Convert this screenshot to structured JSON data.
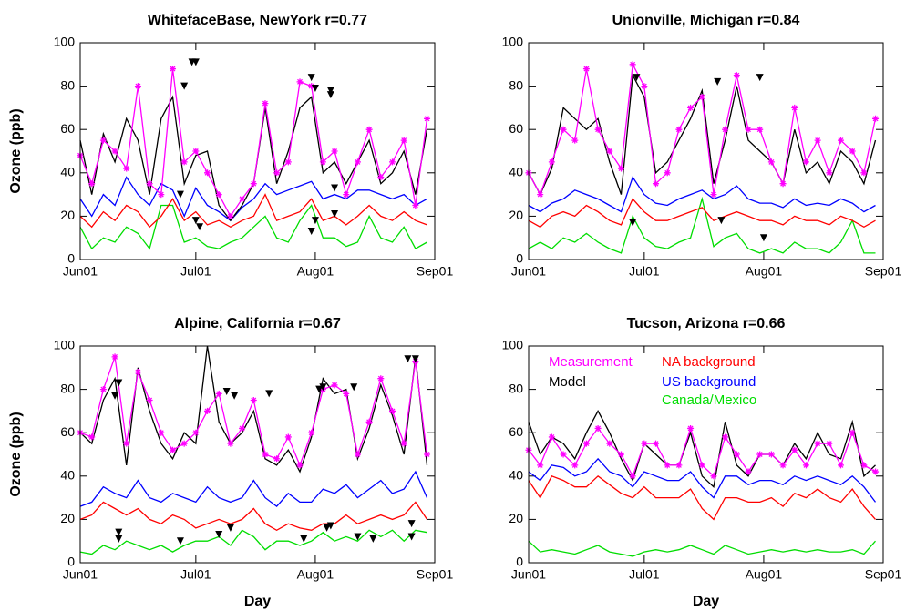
{
  "chart_data": [
    {
      "type": "line",
      "title": "WhitefaceBase, NewYork r=0.77",
      "ylabel": "Ozone (ppb)",
      "xlim": [
        0,
        92
      ],
      "xticks": [
        {
          "value": 0,
          "label": "Jun01"
        },
        {
          "value": 30,
          "label": "Jul01"
        },
        {
          "value": 61,
          "label": "Aug01"
        },
        {
          "value": 92,
          "label": "Sep01"
        }
      ],
      "ylim": [
        0,
        100
      ],
      "yticks": [
        0,
        20,
        40,
        60,
        80,
        100
      ],
      "x": [
        0,
        3,
        6,
        9,
        12,
        15,
        18,
        21,
        24,
        27,
        30,
        33,
        36,
        39,
        42,
        45,
        48,
        51,
        54,
        57,
        60,
        63,
        66,
        69,
        72,
        75,
        78,
        81,
        84,
        87,
        90
      ],
      "series": [
        {
          "color": "#ff00ff",
          "marker": "asterisk",
          "values": [
            48,
            35,
            55,
            50,
            42,
            80,
            35,
            30,
            88,
            45,
            50,
            40,
            30,
            20,
            28,
            35,
            72,
            40,
            45,
            82,
            80,
            45,
            50,
            30,
            45,
            60,
            38,
            45,
            55,
            25,
            65
          ]
        },
        {
          "color": "#000000",
          "values": [
            55,
            30,
            58,
            45,
            65,
            55,
            30,
            65,
            75,
            35,
            48,
            50,
            25,
            18,
            25,
            35,
            70,
            35,
            50,
            70,
            75,
            40,
            45,
            35,
            45,
            55,
            35,
            40,
            50,
            30,
            60
          ]
        },
        {
          "color": "#ff0000",
          "values": [
            20,
            15,
            22,
            18,
            25,
            22,
            15,
            20,
            28,
            18,
            22,
            16,
            18,
            15,
            18,
            20,
            30,
            18,
            20,
            22,
            28,
            18,
            20,
            16,
            20,
            25,
            20,
            18,
            22,
            18,
            16
          ]
        },
        {
          "color": "#0000ff",
          "values": [
            28,
            20,
            30,
            25,
            38,
            30,
            25,
            35,
            32,
            20,
            33,
            25,
            22,
            18,
            24,
            28,
            35,
            30,
            32,
            34,
            36,
            28,
            30,
            28,
            32,
            32,
            30,
            28,
            30,
            25,
            28
          ]
        },
        {
          "color": "#00dd00",
          "values": [
            15,
            5,
            10,
            8,
            15,
            12,
            5,
            25,
            25,
            8,
            10,
            6,
            5,
            8,
            10,
            15,
            20,
            10,
            8,
            18,
            25,
            10,
            10,
            6,
            8,
            20,
            10,
            8,
            15,
            5,
            8
          ]
        }
      ],
      "markers": {
        "color": "#000000",
        "x": [
          26,
          27,
          29,
          30,
          30,
          31,
          60,
          61,
          61,
          60,
          65,
          65,
          66,
          66
        ],
        "values": [
          30,
          80,
          91,
          91,
          18,
          15,
          84,
          79,
          18,
          13,
          78,
          76,
          33,
          21
        ]
      }
    },
    {
      "type": "line",
      "title": "Unionville, Michigan r=0.84",
      "xlim": [
        0,
        92
      ],
      "xticks": [
        {
          "value": 0,
          "label": "Jun01"
        },
        {
          "value": 30,
          "label": "Jul01"
        },
        {
          "value": 61,
          "label": "Aug01"
        },
        {
          "value": 92,
          "label": "Sep01"
        }
      ],
      "ylim": [
        0,
        100
      ],
      "yticks": [
        0,
        20,
        40,
        60,
        80,
        100
      ],
      "x": [
        0,
        3,
        6,
        9,
        12,
        15,
        18,
        21,
        24,
        27,
        30,
        33,
        36,
        39,
        42,
        45,
        48,
        51,
        54,
        57,
        60,
        63,
        66,
        69,
        72,
        75,
        78,
        81,
        84,
        87,
        90
      ],
      "series": [
        {
          "color": "#ff00ff",
          "marker": "asterisk",
          "values": [
            40,
            30,
            45,
            60,
            55,
            88,
            60,
            50,
            42,
            90,
            80,
            35,
            40,
            60,
            70,
            75,
            30,
            60,
            85,
            60,
            60,
            45,
            35,
            70,
            45,
            55,
            40,
            55,
            50,
            40,
            65
          ]
        },
        {
          "color": "#000000",
          "values": [
            40,
            30,
            42,
            70,
            65,
            60,
            65,
            45,
            30,
            85,
            75,
            40,
            45,
            55,
            65,
            78,
            35,
            55,
            80,
            55,
            50,
            45,
            35,
            60,
            40,
            45,
            35,
            50,
            45,
            35,
            55
          ]
        },
        {
          "color": "#ff0000",
          "values": [
            18,
            15,
            20,
            22,
            20,
            25,
            22,
            18,
            16,
            28,
            22,
            18,
            18,
            20,
            22,
            24,
            18,
            20,
            22,
            20,
            18,
            18,
            16,
            20,
            18,
            18,
            16,
            20,
            18,
            15,
            18
          ]
        },
        {
          "color": "#0000ff",
          "values": [
            25,
            22,
            26,
            28,
            32,
            30,
            28,
            25,
            22,
            38,
            30,
            26,
            25,
            28,
            30,
            32,
            28,
            30,
            34,
            28,
            26,
            26,
            24,
            28,
            25,
            26,
            25,
            28,
            26,
            22,
            25
          ]
        },
        {
          "color": "#00dd00",
          "values": [
            5,
            8,
            5,
            10,
            8,
            12,
            8,
            5,
            3,
            20,
            10,
            6,
            5,
            8,
            10,
            28,
            6,
            10,
            12,
            5,
            3,
            5,
            3,
            8,
            5,
            5,
            3,
            8,
            18,
            3,
            3
          ]
        }
      ],
      "markers": {
        "color": "#000000",
        "x": [
          27,
          28,
          49,
          50,
          60,
          61
        ],
        "values": [
          17,
          84,
          82,
          18,
          84,
          10
        ]
      }
    },
    {
      "type": "line",
      "title": "Alpine, California r=0.67",
      "ylabel": "Ozone (ppb)",
      "xlabel": "Day",
      "xlim": [
        0,
        92
      ],
      "xticks": [
        {
          "value": 0,
          "label": "Jun01"
        },
        {
          "value": 30,
          "label": "Jul01"
        },
        {
          "value": 61,
          "label": "Aug01"
        },
        {
          "value": 92,
          "label": "Sep01"
        }
      ],
      "ylim": [
        0,
        100
      ],
      "yticks": [
        0,
        20,
        40,
        60,
        80,
        100
      ],
      "x": [
        0,
        3,
        6,
        9,
        12,
        15,
        18,
        21,
        24,
        27,
        30,
        33,
        36,
        39,
        42,
        45,
        48,
        51,
        54,
        57,
        60,
        63,
        66,
        69,
        72,
        75,
        78,
        81,
        84,
        87,
        90
      ],
      "series": [
        {
          "color": "#ff00ff",
          "marker": "asterisk",
          "values": [
            60,
            58,
            80,
            95,
            55,
            88,
            75,
            60,
            52,
            55,
            60,
            70,
            78,
            55,
            62,
            75,
            50,
            48,
            58,
            45,
            60,
            80,
            82,
            78,
            50,
            65,
            85,
            70,
            55,
            93,
            50
          ]
        },
        {
          "color": "#000000",
          "values": [
            60,
            55,
            75,
            85,
            45,
            90,
            70,
            55,
            48,
            60,
            55,
            100,
            65,
            55,
            60,
            70,
            48,
            45,
            52,
            42,
            58,
            85,
            78,
            80,
            48,
            62,
            82,
            68,
            50,
            95,
            45
          ]
        },
        {
          "color": "#ff0000",
          "values": [
            20,
            22,
            28,
            25,
            22,
            25,
            20,
            18,
            22,
            20,
            16,
            18,
            20,
            18,
            20,
            25,
            18,
            15,
            18,
            16,
            15,
            18,
            18,
            22,
            18,
            20,
            22,
            20,
            22,
            28,
            20
          ]
        },
        {
          "color": "#0000ff",
          "values": [
            26,
            28,
            35,
            32,
            30,
            38,
            30,
            28,
            32,
            30,
            28,
            35,
            30,
            28,
            30,
            38,
            30,
            26,
            32,
            28,
            28,
            34,
            32,
            36,
            30,
            34,
            38,
            32,
            34,
            42,
            30
          ]
        },
        {
          "color": "#00dd00",
          "values": [
            5,
            4,
            8,
            6,
            10,
            8,
            6,
            8,
            5,
            8,
            10,
            10,
            12,
            8,
            15,
            12,
            6,
            10,
            10,
            8,
            10,
            14,
            10,
            12,
            10,
            15,
            12,
            15,
            10,
            15,
            14
          ]
        }
      ],
      "markers": {
        "color": "#000000",
        "x": [
          9,
          10,
          10,
          10,
          26,
          36,
          38,
          39,
          40,
          49,
          58,
          62,
          63,
          64,
          65,
          71,
          72,
          76,
          85,
          86,
          86,
          87
        ],
        "values": [
          77,
          83,
          14,
          11,
          10,
          13,
          79,
          16,
          77,
          78,
          11,
          80,
          81,
          16,
          17,
          81,
          12,
          11,
          94,
          18,
          12,
          94
        ]
      }
    },
    {
      "type": "line",
      "title": "Tucson, Arizona r=0.66",
      "xlabel": "Day",
      "legend": true,
      "xlim": [
        0,
        92
      ],
      "xticks": [
        {
          "value": 0,
          "label": "Jun01"
        },
        {
          "value": 30,
          "label": "Jul01"
        },
        {
          "value": 61,
          "label": "Aug01"
        },
        {
          "value": 92,
          "label": "Sep01"
        }
      ],
      "ylim": [
        0,
        100
      ],
      "yticks": [
        0,
        20,
        40,
        60,
        80,
        100
      ],
      "x": [
        0,
        3,
        6,
        9,
        12,
        15,
        18,
        21,
        24,
        27,
        30,
        33,
        36,
        39,
        42,
        45,
        48,
        51,
        54,
        57,
        60,
        63,
        66,
        69,
        72,
        75,
        78,
        81,
        84,
        87,
        90
      ],
      "series": [
        {
          "name": "Measurement",
          "color": "#ff00ff",
          "marker": "asterisk",
          "values": [
            52,
            45,
            58,
            50,
            45,
            55,
            62,
            55,
            50,
            40,
            55,
            55,
            45,
            45,
            62,
            45,
            40,
            58,
            50,
            42,
            50,
            50,
            45,
            52,
            45,
            55,
            55,
            45,
            60,
            45,
            42
          ]
        },
        {
          "name": "Model",
          "color": "#000000",
          "values": [
            65,
            50,
            58,
            55,
            48,
            60,
            70,
            60,
            48,
            38,
            55,
            50,
            45,
            45,
            60,
            40,
            35,
            65,
            45,
            40,
            50,
            50,
            45,
            55,
            48,
            60,
            50,
            48,
            65,
            40,
            45
          ]
        },
        {
          "name": "NA background",
          "color": "#ff0000",
          "values": [
            38,
            30,
            40,
            38,
            35,
            35,
            40,
            36,
            32,
            30,
            35,
            30,
            30,
            30,
            34,
            25,
            20,
            30,
            30,
            28,
            28,
            30,
            26,
            32,
            30,
            34,
            30,
            28,
            34,
            26,
            20
          ]
        },
        {
          "name": "US background",
          "color": "#0000ff",
          "values": [
            42,
            38,
            45,
            44,
            40,
            42,
            48,
            42,
            40,
            35,
            42,
            40,
            38,
            38,
            42,
            35,
            30,
            40,
            40,
            36,
            38,
            38,
            36,
            40,
            38,
            40,
            38,
            36,
            40,
            35,
            28
          ]
        },
        {
          "name": "Canada/Mexico",
          "color": "#00dd00",
          "values": [
            10,
            5,
            6,
            5,
            4,
            6,
            8,
            5,
            4,
            3,
            5,
            6,
            5,
            6,
            8,
            6,
            4,
            8,
            6,
            4,
            5,
            6,
            5,
            6,
            5,
            6,
            5,
            5,
            6,
            4,
            10
          ]
        }
      ]
    }
  ]
}
